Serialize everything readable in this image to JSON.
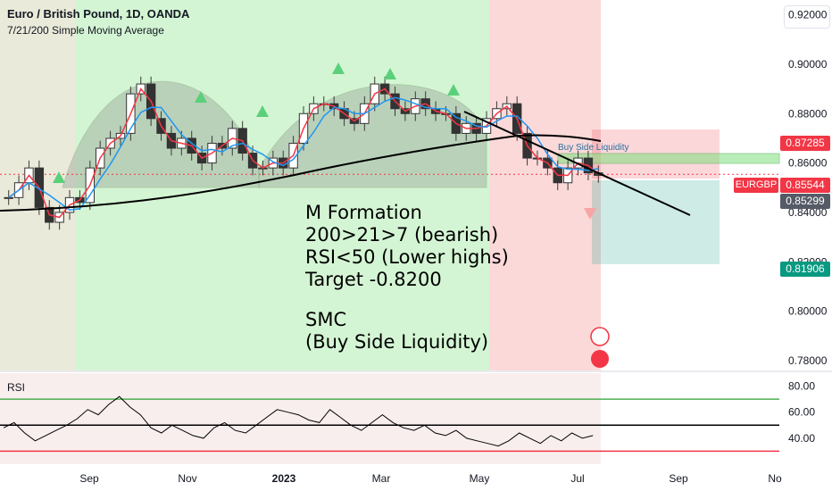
{
  "header": {
    "title": "Euro / British Pound, 1D, OANDA",
    "indicator": "7/21/200 Simple Moving Average"
  },
  "annotations": {
    "line1": "M Formation",
    "line2": "200>21>7 (bearish)",
    "line3": "RSI<50 (Lower highs)",
    "line4": "Target -0.8200",
    "line5": "SMC",
    "line6": "(Buy Side Liquidity)",
    "zone_label": "Buy Side Liquidity"
  },
  "price_tags": {
    "upper": "0.87285",
    "symbol": "EURGBP",
    "current": "0.85544",
    "entry": "0.85299",
    "target": "0.81906"
  },
  "rsi_title": "RSI",
  "colors": {
    "bull_bg": "#d4f5d4",
    "bear_bg": "#fbd9d9",
    "sma7": "#f23645",
    "sma21": "#2196f3",
    "sma200": "#000000",
    "rsi_upper": "#4caf50",
    "rsi_lower": "#f23645"
  },
  "chart_data": [
    {
      "type": "candlestick",
      "ylim": [
        0.776,
        0.926
      ],
      "y_ticks": [
        "0.92000",
        "0.90000",
        "0.88000",
        "0.86000",
        "0.84000",
        "0.82000",
        "0.80000",
        "0.78000"
      ],
      "x_ticks": [
        "Sep",
        "Nov",
        "2023",
        "Mar",
        "May",
        "Jul",
        "Sep",
        "No"
      ],
      "close_path": [
        0.846,
        0.852,
        0.858,
        0.842,
        0.836,
        0.84,
        0.846,
        0.844,
        0.858,
        0.866,
        0.87,
        0.872,
        0.888,
        0.892,
        0.878,
        0.872,
        0.866,
        0.87,
        0.864,
        0.86,
        0.868,
        0.866,
        0.874,
        0.864,
        0.858,
        0.858,
        0.862,
        0.858,
        0.868,
        0.88,
        0.884,
        0.884,
        0.882,
        0.878,
        0.876,
        0.884,
        0.892,
        0.888,
        0.882,
        0.88,
        0.886,
        0.882,
        0.88,
        0.88,
        0.872,
        0.876,
        0.872,
        0.878,
        0.882,
        0.884,
        0.872,
        0.862,
        0.862,
        0.858,
        0.852,
        0.858,
        0.862,
        0.856,
        0.855
      ],
      "levels": {
        "upper": 0.87285,
        "current": 0.85544,
        "entry": 0.85299,
        "target": 0.81906
      }
    },
    {
      "type": "line",
      "name": "RSI",
      "ylim": [
        20,
        90
      ],
      "y_ticks": [
        "80.00",
        "60.00",
        "40.00"
      ],
      "levels": [
        70,
        50,
        30
      ],
      "values": [
        48,
        52,
        44,
        38,
        42,
        46,
        50,
        55,
        62,
        58,
        66,
        72,
        64,
        58,
        48,
        44,
        50,
        46,
        42,
        40,
        48,
        52,
        46,
        44,
        50,
        56,
        62,
        60,
        58,
        54,
        52,
        62,
        56,
        50,
        46,
        52,
        58,
        52,
        48,
        46,
        50,
        44,
        42,
        46,
        40,
        38,
        36,
        34,
        38,
        44,
        40,
        36,
        42,
        38,
        44,
        40,
        42
      ]
    }
  ]
}
